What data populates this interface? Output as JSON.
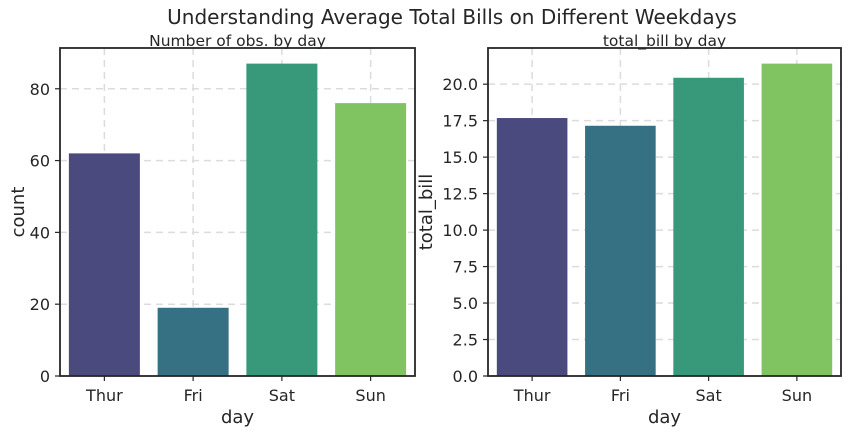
{
  "figure": {
    "suptitle": "Understanding Average Total Bills on Different Weekdays"
  },
  "chart_data": [
    {
      "type": "bar",
      "title": "Number of obs. by day",
      "xlabel": "day",
      "ylabel": "count",
      "categories": [
        "Thur",
        "Fri",
        "Sat",
        "Sun"
      ],
      "values": [
        62,
        19,
        87,
        76
      ],
      "ylim": [
        0,
        91.35
      ],
      "yticks": [
        0,
        20,
        40,
        60,
        80
      ],
      "ytick_labels": [
        "0",
        "20",
        "40",
        "60",
        "80"
      ],
      "colors": [
        "#4a4a7e",
        "#357183",
        "#38997a",
        "#80c462"
      ],
      "grid": true
    },
    {
      "type": "bar",
      "title": "total_bill by day",
      "xlabel": "day",
      "ylabel": "total_bill",
      "categories": [
        "Thur",
        "Fri",
        "Sat",
        "Sun"
      ],
      "values": [
        17.68,
        17.15,
        20.44,
        21.41
      ],
      "ylim": [
        0,
        22.48
      ],
      "yticks": [
        0,
        2.5,
        5,
        7.5,
        10,
        12.5,
        15,
        17.5,
        20
      ],
      "ytick_labels": [
        "0.0",
        "2.5",
        "5.0",
        "7.5",
        "10.0",
        "12.5",
        "15.0",
        "17.5",
        "20.0"
      ],
      "colors": [
        "#4a4a7e",
        "#357183",
        "#38997a",
        "#80c462"
      ],
      "grid": true
    }
  ]
}
